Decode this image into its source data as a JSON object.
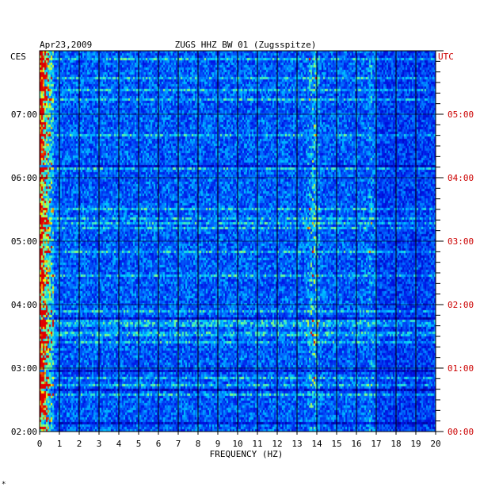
{
  "chart_data": {
    "type": "heatmap",
    "title": "ZUGS HHZ BW 01 (Zugsspitze)",
    "date": "Apr23,2009",
    "xlabel": "FREQUENCY (HZ)",
    "xlim": [
      0,
      20
    ],
    "x_ticks": [
      "0",
      "1",
      "2",
      "3",
      "4",
      "5",
      "6",
      "7",
      "8",
      "9",
      "10",
      "11",
      "12",
      "13",
      "14",
      "15",
      "16",
      "17",
      "18",
      "19",
      "20"
    ],
    "left_timezone": "CES",
    "right_timezone": "UTC",
    "left_ticks": [
      "07:00",
      "06:00",
      "05:00",
      "04:00",
      "03:00",
      "02:00"
    ],
    "right_ticks": [
      "05:00",
      "04:00",
      "03:00",
      "02:00",
      "01:00",
      "00:00"
    ],
    "tick_hours_from_bottom": [
      5,
      4,
      3,
      2,
      1,
      0
    ],
    "time_range_hours": [
      0,
      6
    ],
    "colors": {
      "low": "#0000c8",
      "mid": "#00c8ff",
      "high": "#ffff00",
      "peak": "#e00000",
      "label_right": "#cc0000"
    },
    "features": [
      {
        "frequency_hz": 0.3,
        "description": "strong persistent low-frequency energy band"
      },
      {
        "frequency_hz": 13.8,
        "description": "intermittent narrow band at ~13.8 Hz"
      },
      {
        "frequency_hz": 16.7,
        "description": "weak narrow band at ~16.7 Hz"
      }
    ],
    "grid": true,
    "footnote": "*"
  }
}
